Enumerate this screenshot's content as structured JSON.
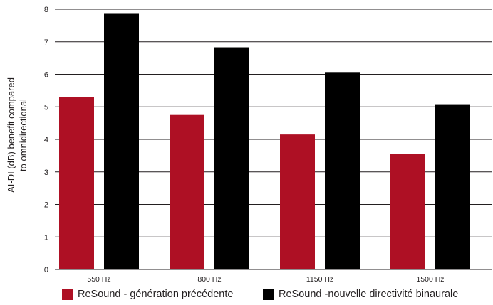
{
  "chart_data": {
    "type": "bar",
    "categories": [
      "550 Hz",
      "800 Hz",
      "1150 Hz",
      "1500 Hz"
    ],
    "series": [
      {
        "name": "ReSound - génération précédente",
        "values": [
          5.3,
          4.75,
          4.15,
          3.55
        ],
        "color": "#ae1024"
      },
      {
        "name": "ReSound -nouvelle directivité binaurale",
        "values": [
          7.88,
          6.83,
          6.07,
          5.08
        ],
        "color": "#000000"
      }
    ],
    "ylabel_lines": [
      "AI-DI (dB) benefit compared",
      "to omnidirectional"
    ],
    "ylim": [
      0,
      8
    ],
    "yticks": [
      "0",
      "1",
      "2",
      "3",
      "4",
      "5",
      "6",
      "7",
      "8"
    ],
    "grid": true,
    "legend_position": "bottom"
  }
}
